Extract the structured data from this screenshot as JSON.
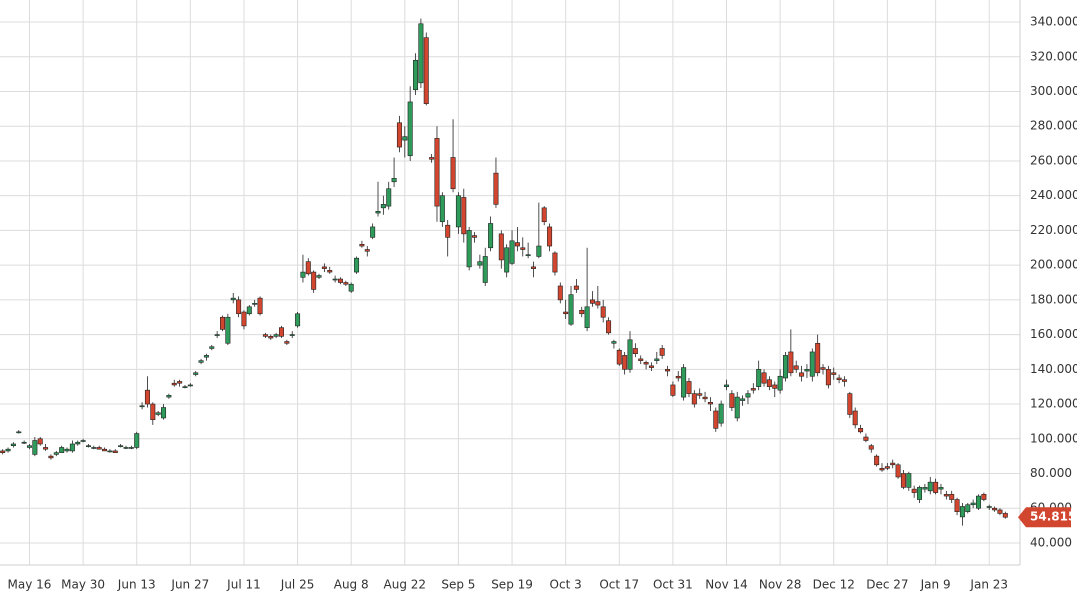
{
  "chart_data": {
    "type": "candlestick",
    "categories": [
      null,
      null,
      null,
      null,
      null,
      "May 16",
      null,
      null,
      null,
      null,
      null,
      null,
      null,
      null,
      null,
      "May 30",
      null,
      null,
      null,
      null,
      null,
      null,
      null,
      null,
      null,
      "Jun 13",
      null,
      null,
      null,
      null,
      null,
      null,
      null,
      null,
      null,
      "Jun 27",
      null,
      null,
      null,
      null,
      null,
      null,
      null,
      null,
      null,
      "Jul 11",
      null,
      null,
      null,
      null,
      null,
      null,
      null,
      null,
      null,
      "Jul 25",
      null,
      null,
      null,
      null,
      null,
      null,
      null,
      null,
      null,
      "Aug 8",
      null,
      null,
      null,
      null,
      null,
      null,
      null,
      null,
      null,
      "Aug 22",
      null,
      null,
      null,
      null,
      null,
      null,
      null,
      null,
      null,
      "Sep 5",
      null,
      null,
      null,
      null,
      null,
      null,
      null,
      null,
      null,
      "Sep 19",
      null,
      null,
      null,
      null,
      null,
      null,
      null,
      null,
      null,
      "Oct 3",
      null,
      null,
      null,
      null,
      null,
      null,
      null,
      null,
      null,
      "Oct 17",
      null,
      null,
      null,
      null,
      null,
      null,
      null,
      null,
      null,
      "Oct 31",
      null,
      null,
      null,
      null,
      null,
      null,
      null,
      null,
      null,
      "Nov 14",
      null,
      null,
      null,
      null,
      null,
      null,
      null,
      null,
      null,
      "Nov 28",
      null,
      null,
      null,
      null,
      null,
      null,
      null,
      null,
      null,
      "Dec 12",
      null,
      null,
      null,
      null,
      null,
      null,
      null,
      null,
      null,
      "Dec 27",
      null,
      null,
      null,
      null,
      null,
      null,
      null,
      null,
      "Jan 9",
      null,
      null,
      null,
      null,
      null,
      null,
      null,
      null,
      null,
      "Jan 23",
      null,
      null,
      null
    ],
    "open": [
      93,
      93,
      96,
      104,
      98,
      95,
      91,
      100,
      95,
      90,
      91,
      92,
      93,
      93,
      97,
      99,
      96,
      95,
      95,
      94,
      93,
      93,
      96,
      95,
      95,
      95,
      119,
      128,
      120,
      114,
      112,
      124,
      132,
      133,
      130,
      131,
      137,
      144,
      147,
      152,
      160,
      170,
      155,
      180,
      180,
      173,
      172,
      178,
      181,
      160,
      159,
      159,
      164,
      156,
      160,
      165,
      193,
      202,
      196,
      193,
      199,
      197,
      192,
      192,
      190,
      185,
      196,
      212,
      209,
      216,
      230,
      233,
      234,
      248,
      282,
      272,
      263,
      301,
      305,
      331,
      262,
      273,
      225,
      223,
      262,
      222,
      239,
      199,
      217,
      200,
      190,
      210,
      253,
      218,
      196,
      201,
      213,
      210,
      206,
      199,
      205,
      233,
      222,
      207,
      188,
      173,
      166,
      188,
      174,
      164,
      180,
      179,
      176,
      168,
      155,
      151,
      148,
      140,
      152,
      146,
      144,
      142,
      145,
      152,
      140,
      131,
      136,
      124,
      133,
      126,
      126,
      124,
      121,
      116,
      109,
      130,
      126,
      112,
      122,
      124,
      129,
      130,
      138,
      134,
      131,
      128,
      135,
      150,
      142,
      138,
      139,
      136,
      155,
      141,
      140,
      138,
      135,
      134,
      126,
      116,
      106,
      101,
      96,
      90,
      83,
      84,
      86,
      85,
      80,
      72,
      71,
      65,
      71,
      70,
      75,
      71,
      68,
      68,
      65,
      55,
      58,
      62,
      60,
      68,
      61,
      60,
      59,
      57
    ],
    "high": [
      94,
      95,
      98,
      105,
      99,
      97,
      101,
      101,
      97,
      91,
      93,
      96,
      95,
      99,
      99,
      100,
      97,
      96,
      96,
      95,
      94,
      94,
      97,
      96,
      96,
      104,
      121,
      136,
      121,
      116,
      120,
      126,
      134,
      134,
      131,
      132,
      139,
      146,
      149,
      154,
      162,
      171,
      172,
      184,
      182,
      174,
      177,
      180,
      182,
      161,
      160,
      161,
      165,
      157,
      162,
      173,
      206,
      204,
      197,
      195,
      201,
      199,
      194,
      193,
      191,
      190,
      205,
      214,
      211,
      224,
      248,
      240,
      248,
      262,
      286,
      280,
      303,
      322,
      342,
      334,
      264,
      280,
      242,
      226,
      284,
      242,
      244,
      222,
      219,
      206,
      210,
      228,
      262,
      220,
      212,
      220,
      222,
      216,
      213,
      202,
      236,
      234,
      224,
      208,
      190,
      180,
      188,
      192,
      176,
      210,
      185,
      188,
      180,
      170,
      157,
      152,
      150,
      162,
      155,
      148,
      145,
      144,
      150,
      154,
      142,
      133,
      139,
      143,
      135,
      128,
      129,
      127,
      124,
      118,
      122,
      134,
      128,
      127,
      125,
      128,
      132,
      145,
      140,
      136,
      133,
      140,
      150,
      163,
      145,
      142,
      143,
      152,
      160,
      143,
      142,
      141,
      137,
      136,
      127,
      118,
      108,
      103,
      97,
      91,
      86,
      86,
      88,
      86,
      82,
      81,
      73,
      73,
      74,
      78,
      77,
      74,
      70,
      70,
      66,
      63,
      63,
      65,
      68,
      69,
      62,
      61,
      60,
      58
    ],
    "low": [
      91,
      92,
      95,
      103,
      97,
      94,
      90,
      96,
      93,
      88,
      90,
      92,
      92,
      92,
      96,
      98,
      95,
      94,
      94,
      93,
      92,
      92,
      95,
      94,
      94,
      94,
      117,
      118,
      108,
      113,
      111,
      123,
      130,
      130,
      129,
      130,
      136,
      143,
      145,
      151,
      158,
      162,
      154,
      178,
      170,
      163,
      171,
      176,
      171,
      158,
      157,
      158,
      158,
      154,
      158,
      164,
      190,
      194,
      184,
      192,
      196,
      195,
      190,
      189,
      188,
      184,
      195,
      210,
      205,
      215,
      228,
      229,
      232,
      245,
      265,
      262,
      260,
      298,
      302,
      292,
      259,
      225,
      222,
      205,
      242,
      218,
      213,
      197,
      213,
      198,
      188,
      208,
      233,
      198,
      193,
      200,
      208,
      205,
      204,
      193,
      204,
      223,
      208,
      194,
      178,
      169,
      165,
      184,
      170,
      162,
      176,
      175,
      167,
      160,
      152,
      142,
      137,
      138,
      147,
      143,
      140,
      139,
      143,
      146,
      136,
      124,
      133,
      122,
      124,
      118,
      123,
      121,
      116,
      104,
      107,
      128,
      116,
      110,
      119,
      120,
      126,
      128,
      130,
      128,
      124,
      126,
      133,
      136,
      138,
      133,
      135,
      133,
      136,
      137,
      129,
      134,
      132,
      130,
      112,
      106,
      103,
      98,
      92,
      84,
      81,
      82,
      83,
      77,
      71,
      70,
      66,
      63,
      69,
      68,
      68,
      68,
      65,
      63,
      56,
      50,
      57,
      60,
      59,
      64,
      59,
      58,
      56,
      54
    ],
    "close": [
      92,
      94,
      97,
      104,
      98,
      96,
      99,
      97,
      94,
      89,
      92,
      95,
      94,
      97,
      98,
      99,
      96,
      95,
      94,
      93,
      93,
      92,
      96,
      95,
      95,
      103,
      119,
      120,
      111,
      115,
      118,
      125,
      131,
      132,
      130,
      131,
      138,
      145,
      148,
      153,
      160,
      163,
      170,
      181,
      172,
      165,
      176,
      178,
      172,
      159,
      158,
      160,
      159,
      155,
      160,
      172,
      196,
      195,
      186,
      194,
      198,
      196,
      192,
      190,
      189,
      189,
      204,
      211,
      208,
      222,
      231,
      235,
      244,
      250,
      268,
      274,
      294,
      318,
      339,
      293,
      261,
      234,
      240,
      216,
      244,
      240,
      218,
      220,
      216,
      202,
      205,
      224,
      235,
      203,
      210,
      214,
      211,
      209,
      206,
      198,
      211,
      225,
      211,
      196,
      180,
      172,
      183,
      186,
      172,
      176,
      178,
      177,
      170,
      161,
      156,
      143,
      140,
      157,
      149,
      145,
      143,
      141,
      146,
      148,
      139,
      125,
      135,
      141,
      126,
      120,
      125,
      123,
      120,
      106,
      120,
      131,
      118,
      124,
      123,
      126,
      128,
      140,
      132,
      130,
      129,
      136,
      148,
      138,
      140,
      136,
      140,
      150,
      138,
      140,
      131,
      137,
      134,
      133,
      114,
      108,
      104,
      99,
      94,
      85,
      82,
      83,
      85,
      78,
      72,
      80,
      69,
      72,
      72,
      75,
      69,
      72,
      67,
      65,
      58,
      61,
      62,
      63,
      67,
      65,
      61,
      59,
      57,
      54.815
    ],
    "up_color": "#2e9b5b",
    "down_color": "#d2452f",
    "ylim": [
      27.3,
      352.7
    ],
    "yticks": [
      {
        "value": 40,
        "label": "40.000"
      },
      {
        "value": 60,
        "label": "60.000"
      },
      {
        "value": 80,
        "label": "80.000"
      },
      {
        "value": 100,
        "label": "100.000"
      },
      {
        "value": 120,
        "label": "120.000"
      },
      {
        "value": 140,
        "label": "140.000"
      },
      {
        "value": 160,
        "label": "160.000"
      },
      {
        "value": 180,
        "label": "180.000"
      },
      {
        "value": 200,
        "label": "200.000"
      },
      {
        "value": 220,
        "label": "220.000"
      },
      {
        "value": 240,
        "label": "240.000"
      },
      {
        "value": 260,
        "label": "260.000"
      },
      {
        "value": 280,
        "label": "280.000"
      },
      {
        "value": 300,
        "label": "300.000"
      },
      {
        "value": 320,
        "label": "320.000"
      },
      {
        "value": 340,
        "label": "340.000"
      }
    ],
    "grid": true
  }
}
